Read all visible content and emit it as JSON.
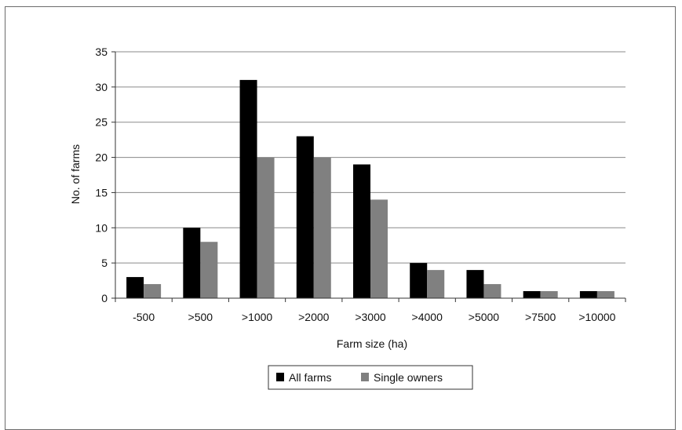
{
  "chart_data": {
    "type": "bar",
    "xlabel": "Farm size (ha)",
    "ylabel": "No. of farms",
    "ylim": [
      0,
      35
    ],
    "yticks": [
      0,
      5,
      10,
      15,
      20,
      25,
      30,
      35
    ],
    "grid": true,
    "legend_position": "bottom",
    "categories": [
      "-500",
      ">500",
      ">1000",
      ">2000",
      ">3000",
      ">4000",
      ">5000",
      ">7500",
      ">10000"
    ],
    "series": [
      {
        "name": "All farms",
        "color": "#000000",
        "values": [
          3,
          10,
          31,
          23,
          19,
          5,
          4,
          1,
          1
        ]
      },
      {
        "name": "Single owners",
        "color": "#808080",
        "values": [
          2,
          8,
          20,
          20,
          14,
          4,
          2,
          1,
          1
        ]
      }
    ]
  }
}
